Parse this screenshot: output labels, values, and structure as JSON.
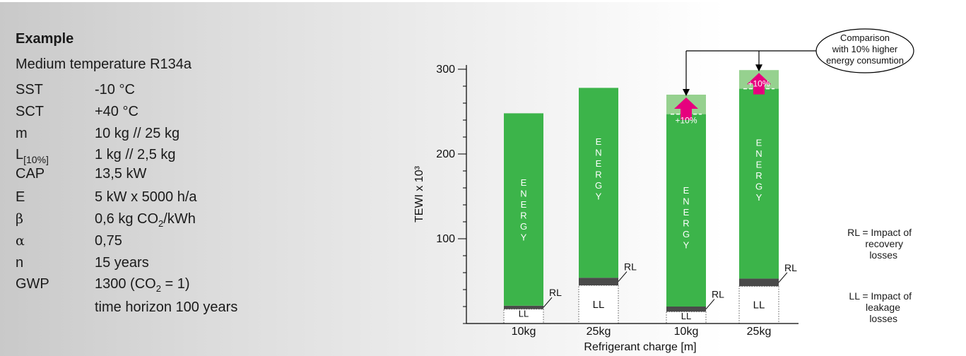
{
  "example": {
    "title": "Example",
    "subtitle": "Medium temperature R134a",
    "rows": [
      {
        "key": "SST",
        "value": "-10 °C"
      },
      {
        "key": "SCT",
        "value": "+40 °C"
      },
      {
        "key": "m",
        "value": "10 kg // 25 kg"
      },
      {
        "key": "L",
        "key_sub": "[10%]",
        "value": "1 kg // 2,5 kg"
      },
      {
        "key": "CAP",
        "value": "13,5 kW"
      },
      {
        "key": "E",
        "value": "5 kW x 5000 h/a"
      },
      {
        "key": "β",
        "value_pre": "0,6 kg CO",
        "value_sub": "2",
        "value_post": "/kWh"
      },
      {
        "key": "α",
        "value": "0,75"
      },
      {
        "key": "n",
        "value": "15 years"
      },
      {
        "key": "GWP",
        "value_pre": "1300 (CO",
        "value_sub": "2",
        "value_post": " = 1)"
      },
      {
        "key": "",
        "value": "time horizon 100 years"
      }
    ]
  },
  "chart_data": {
    "type": "bar",
    "stacked": true,
    "ylabel": "TEWI x 10³",
    "xlabel": "Refrigerant charge [m]",
    "ylim": [
      0,
      305
    ],
    "yticks": [
      100,
      200,
      300
    ],
    "categories": [
      "10kg",
      "25kg",
      "10kg",
      "25kg"
    ],
    "series": [
      {
        "name": "LL",
        "values": [
          17,
          45,
          14,
          44
        ]
      },
      {
        "name": "RL",
        "values": [
          4,
          9,
          6,
          9
        ]
      },
      {
        "name": "ENERGY",
        "values": [
          227,
          224,
          227,
          224
        ]
      },
      {
        "name": "+10%",
        "values": [
          0,
          0,
          23,
          22
        ]
      }
    ],
    "segment_labels": {
      "ll": "LL",
      "rl": "RL",
      "energy_letters": [
        "E",
        "N",
        "E",
        "R",
        "G",
        "Y"
      ],
      "increase": "+10%"
    },
    "callout": [
      "Comparison",
      "with 10% higher",
      "energy consumtion"
    ],
    "legend": {
      "rl": [
        "RL = Impact of",
        "recovery",
        "losses"
      ],
      "ll": [
        "LL = Impact of",
        "leakage",
        "losses"
      ]
    },
    "colors": {
      "energy": "#3cb44a",
      "increase": "#96d18f",
      "rl": "#4a4a4a",
      "ll": "#ffffff",
      "arrow": "#e6007e"
    }
  }
}
